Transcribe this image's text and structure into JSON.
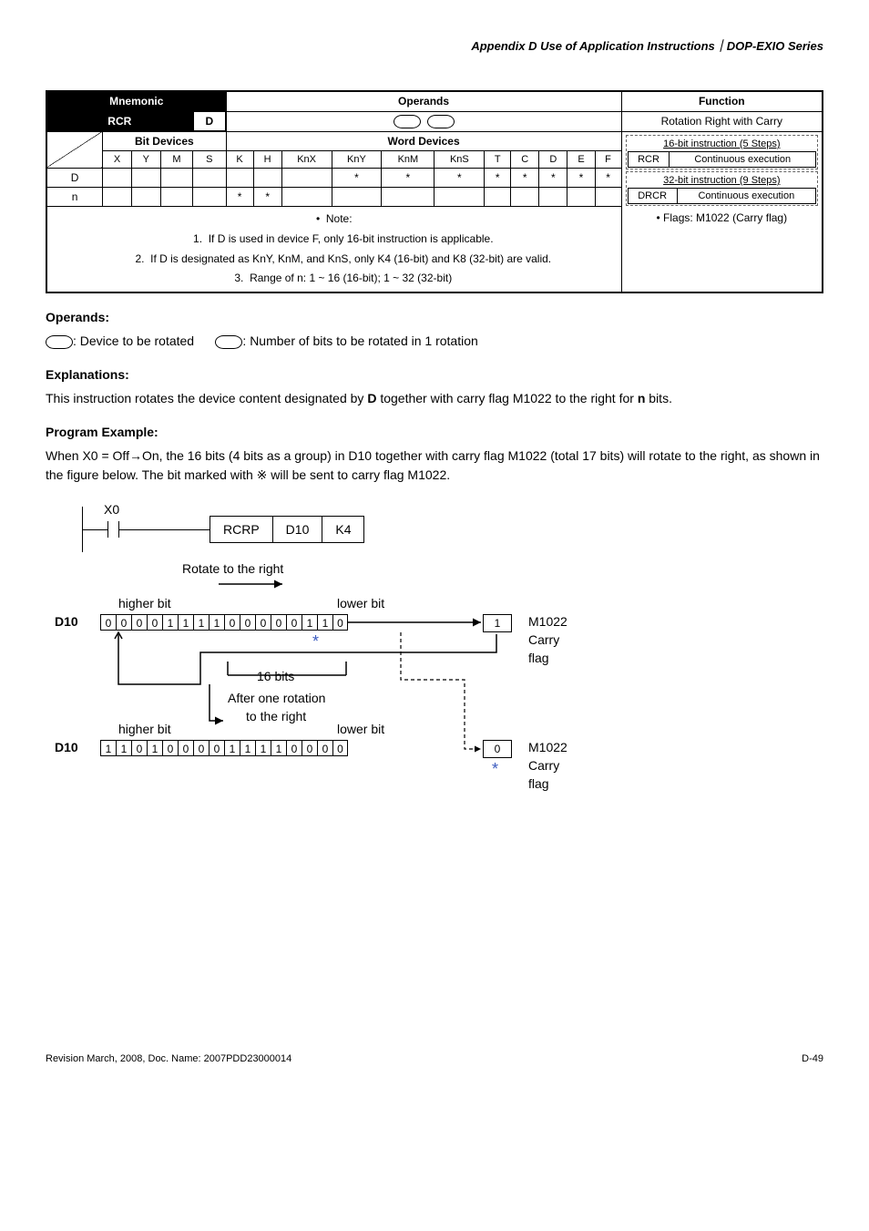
{
  "header": "Appendix D Use of Application Instructions｜DOP-EXIO Series",
  "mnemonic_label": "Mnemonic",
  "operands_label": "Operands",
  "function_label": "Function",
  "rcr": "RCR",
  "rotation_label": "Rotation Right with Carry",
  "bit_devices_label": "Bit Devices",
  "word_devices_label": "Word Devices",
  "cols": [
    "X",
    "Y",
    "M",
    "S",
    "K",
    "H",
    "KnX",
    "KnY",
    "KnM",
    "KnS",
    "T",
    "C",
    "D",
    "E",
    "F"
  ],
  "D_row": [
    "",
    "",
    "",
    "",
    "",
    "",
    "",
    "*",
    "*",
    "*",
    "*",
    "*",
    "*",
    "*",
    "*"
  ],
  "n_row": [
    "",
    "",
    "",
    "",
    "*",
    "*",
    "",
    "",
    "",
    "",
    "",
    "",
    "",
    "",
    ""
  ],
  "note_head": "Note:",
  "note1": "If D is used in device F, only 16-bit instruction is applicable.",
  "note2": "If D is designated as KnY, KnM, and KnS, only K4 (16-bit) and K8 (32-bit) are valid.",
  "note3": "Range of n: 1 ~ 16 (16-bit); 1 ~ 32 (32-bit)",
  "steps16": "16-bit instruction (5 Steps)",
  "steps32": "32-bit instruction (9 Steps)",
  "rcr_cont": "Continuous execution",
  "drcr_cont": "Continuous execution",
  "rcr_lbl": "RCR",
  "drcr_lbl": "DRCR",
  "flags": "Flags: M1022 (Carry flag)",
  "operands_head": "Operands:",
  "operand_desc_d": ": Device to be rotated",
  "operand_desc_n": ": Number of bits to be rotated in 1 rotation",
  "explanations_head": "Explanations:",
  "explanation_body": [
    "This instruction rotates the device content designated by ",
    " together with carry flag M1022 to the right for ",
    " bits."
  ],
  "explanation_bold": [
    "D",
    "n"
  ],
  "program_head": "Program Example:",
  "program_body": "When X0 = Off→On, the 16 bits (4 bits as a group) in D10 together with carry flag M1022 (total 17 bits) will rotate to the right, as shown in the figure below. The bit marked with ※ will be sent to carry flag M1022.",
  "diagram": {
    "X0": "X0",
    "RCRP": "RCRP",
    "D10_box": "D10",
    "K4": "K4",
    "rotate_right": "Rotate to the right",
    "higher_bit": "higher bit",
    "lower_bit": "lower bit",
    "D10_label": "D10",
    "bits_before": [
      "0",
      "0",
      "0",
      "0",
      "1",
      "1",
      "1",
      "1",
      "0",
      "0",
      "0",
      "0",
      "0",
      "1",
      "1",
      "0"
    ],
    "M1022": "M1022",
    "Carry": "Carry",
    "flag": "flag",
    "sixteen_bits": "16 bits",
    "after_rotation": "After one rotation",
    "to_right": "to the right",
    "bits_after": [
      "1",
      "1",
      "0",
      "1",
      "0",
      "0",
      "0",
      "0",
      "1",
      "1",
      "1",
      "1",
      "0",
      "0",
      "0",
      "0"
    ],
    "val_before": "1",
    "val_after": "0",
    "star": "*"
  },
  "footer_left": "Revision March, 2008, Doc. Name: 2007PDD23000014",
  "footer_right": "D-49"
}
